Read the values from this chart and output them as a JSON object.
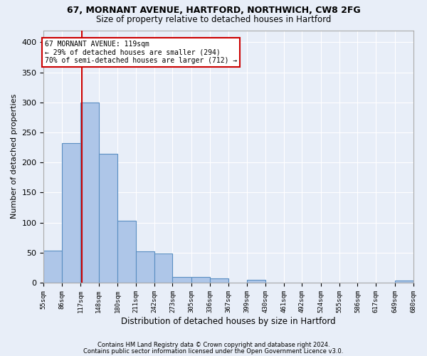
{
  "title1": "67, MORNANT AVENUE, HARTFORD, NORTHWICH, CW8 2FG",
  "title2": "Size of property relative to detached houses in Hartford",
  "xlabel": "Distribution of detached houses by size in Hartford",
  "ylabel": "Number of detached properties",
  "property_size": 119,
  "bin_edges": [
    55,
    86,
    117,
    148,
    180,
    211,
    242,
    273,
    305,
    336,
    367,
    399,
    430,
    461,
    492,
    524,
    555,
    586,
    617,
    649,
    680
  ],
  "bar_heights": [
    53,
    232,
    300,
    215,
    103,
    52,
    49,
    10,
    10,
    7,
    0,
    5,
    0,
    0,
    0,
    0,
    0,
    0,
    0,
    4
  ],
  "bar_color": "#aec6e8",
  "bar_edge_color": "#5a8fc2",
  "vline_color": "#cc0000",
  "vline_x": 119,
  "annotation_line1": "67 MORNANT AVENUE: 119sqm",
  "annotation_line2": "← 29% of detached houses are smaller (294)",
  "annotation_line3": "70% of semi-detached houses are larger (712) →",
  "annotation_box_color": "#ffffff",
  "annotation_box_edge_color": "#cc0000",
  "ylim": [
    0,
    420
  ],
  "yticks": [
    0,
    50,
    100,
    150,
    200,
    250,
    300,
    350,
    400
  ],
  "background_color": "#e8eef8",
  "grid_color": "#ffffff",
  "footer_line1": "Contains HM Land Registry data © Crown copyright and database right 2024.",
  "footer_line2": "Contains public sector information licensed under the Open Government Licence v3.0."
}
